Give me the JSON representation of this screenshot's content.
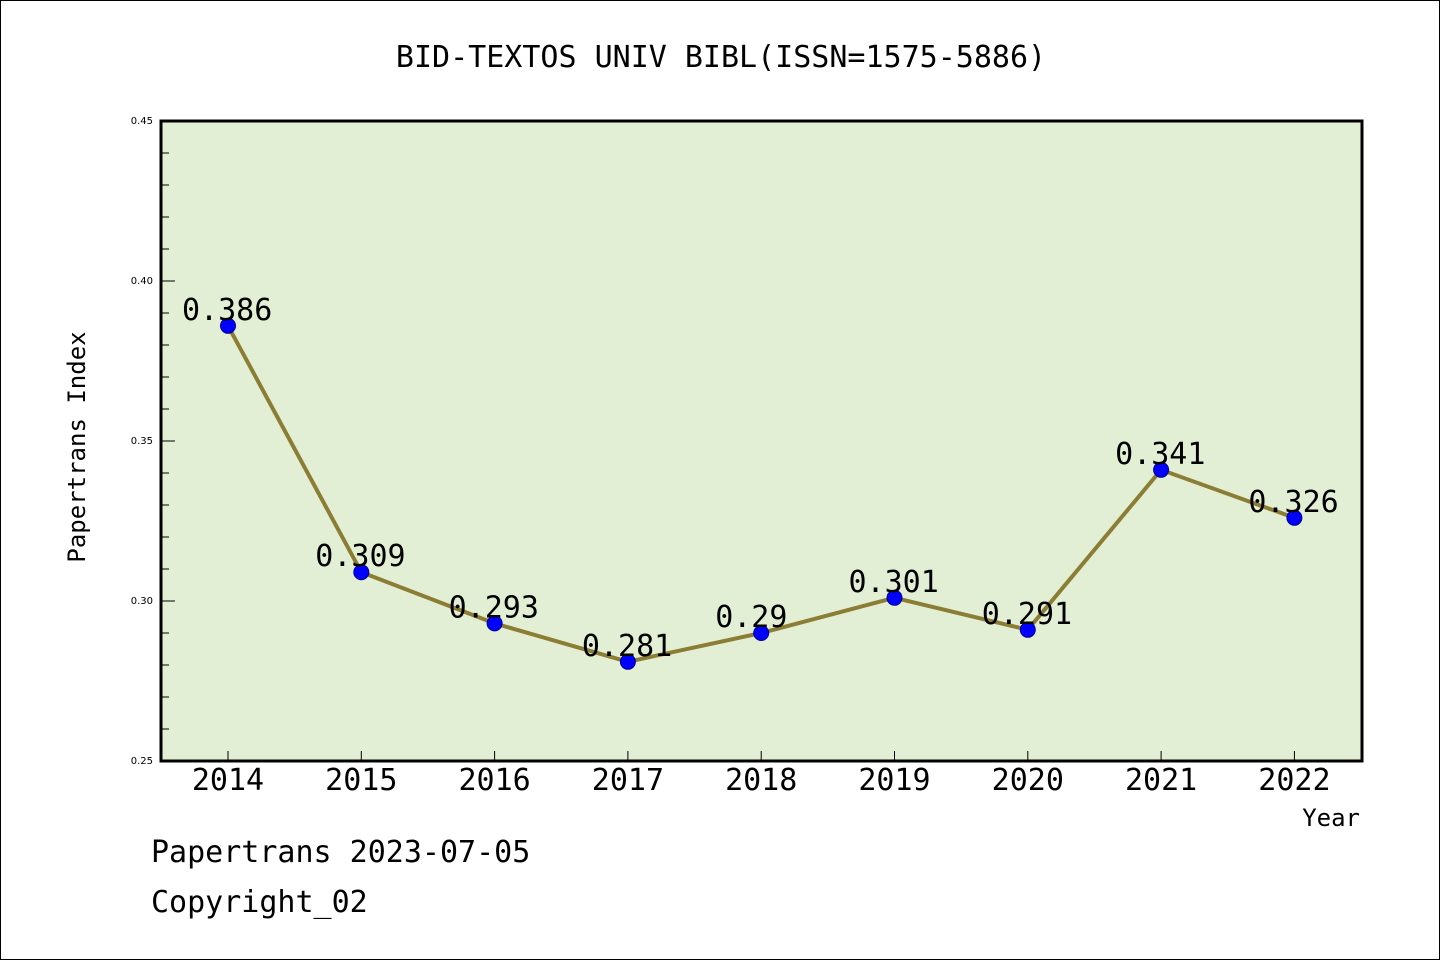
{
  "chart_data": {
    "type": "line",
    "title": "BID-TEXTOS UNIV BIBL(ISSN=1575-5886)",
    "xlabel": "Year",
    "ylabel": "Papertrans Index",
    "categories": [
      "2014",
      "2015",
      "2016",
      "2017",
      "2018",
      "2019",
      "2020",
      "2021",
      "2022"
    ],
    "values": [
      0.386,
      0.309,
      0.293,
      0.281,
      0.29,
      0.301,
      0.291,
      0.341,
      0.326
    ],
    "data_labels": [
      "0.386",
      "0.309",
      "0.293",
      "0.281",
      "0.29",
      "0.301",
      "0.291",
      "0.341",
      "0.326"
    ],
    "ylim": [
      0.25,
      0.45
    ],
    "yticks": [
      0.25,
      0.3,
      0.35,
      0.4,
      0.45
    ],
    "ytick_labels": [
      "0.25",
      "0.30",
      "0.35",
      "0.40",
      "0.45"
    ],
    "grid": false,
    "colors": {
      "plot_background": "#e2efd5",
      "line": "#8b7d33",
      "marker": "#0000ff",
      "marker_edge": "#00008b"
    }
  },
  "footer": {
    "line1": "Papertrans 2023-07-05",
    "line2": "Copyright_02"
  }
}
